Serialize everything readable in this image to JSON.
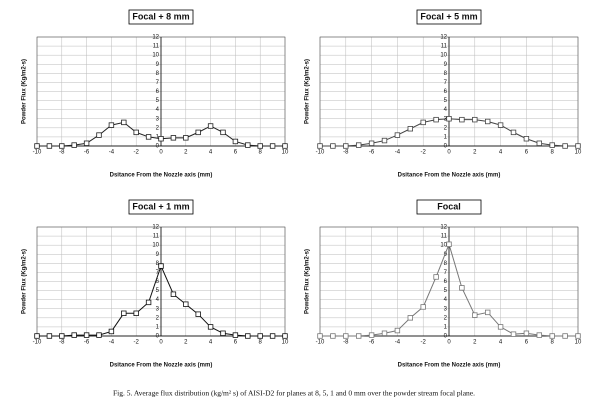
{
  "chart_data": [
    {
      "type": "line",
      "title": "Focal + 8 mm",
      "x_label": "Dsitance From the Nozzle axis (mm)",
      "y_label": "Powder Flux (Kg/m2-s)",
      "x": [
        -10,
        -9,
        -8,
        -7,
        -6,
        -5,
        -4,
        -3,
        -2,
        -1,
        0,
        1,
        2,
        3,
        4,
        5,
        6,
        7,
        8,
        9,
        10
      ],
      "series": [
        {
          "name": "Focal + 8 mm",
          "color": "#222222",
          "values": [
            0,
            0,
            0,
            0.1,
            0.3,
            1.2,
            2.3,
            2.6,
            1.5,
            1.0,
            0.8,
            0.9,
            0.9,
            1.5,
            2.2,
            1.5,
            0.5,
            0.1,
            0,
            0,
            0
          ]
        }
      ],
      "xlim": [
        -10,
        10
      ],
      "xticks": [
        -10,
        -8,
        -6,
        -4,
        -2,
        0,
        2,
        4,
        6,
        8,
        10
      ],
      "ylim": [
        0,
        12
      ],
      "yticks": [
        0,
        1,
        2,
        3,
        4,
        5,
        6,
        7,
        8,
        9,
        10,
        11,
        12
      ],
      "grid": true
    },
    {
      "type": "line",
      "title": "Focal + 5 mm",
      "x_label": "Dsitance From the Nozzle axis (mm)",
      "y_label": "Powder Flux (Kg/m2-s)",
      "x": [
        -10,
        -9,
        -8,
        -7,
        -6,
        -5,
        -4,
        -3,
        -2,
        -1,
        0,
        1,
        2,
        3,
        4,
        5,
        6,
        7,
        8,
        9,
        10
      ],
      "series": [
        {
          "name": "Focal + 5 mm",
          "color": "#444444",
          "values": [
            0,
            0,
            0,
            0.1,
            0.3,
            0.6,
            1.2,
            1.9,
            2.6,
            2.9,
            3.0,
            2.9,
            2.9,
            2.7,
            2.3,
            1.5,
            0.8,
            0.3,
            0.1,
            0,
            0
          ]
        }
      ],
      "xlim": [
        -10,
        10
      ],
      "xticks": [
        -10,
        -8,
        -6,
        -4,
        -2,
        0,
        2,
        4,
        6,
        8,
        10
      ],
      "ylim": [
        0,
        12
      ],
      "yticks": [
        0,
        1,
        2,
        3,
        4,
        5,
        6,
        7,
        8,
        9,
        10,
        11,
        12
      ],
      "grid": true
    },
    {
      "type": "line",
      "title": "Focal + 1 mm",
      "x_label": "Dsitance From the Nozzle axis (mm)",
      "y_label": "Powder Flux (Kg/m2-s)",
      "x": [
        -10,
        -9,
        -8,
        -7,
        -6,
        -5,
        -4,
        -3,
        -2,
        -1,
        0,
        1,
        2,
        3,
        4,
        5,
        6,
        7,
        8,
        9,
        10
      ],
      "series": [
        {
          "name": "Focal + 1 mm",
          "color": "#111111",
          "values": [
            0,
            0,
            0,
            0.1,
            0.1,
            0.1,
            0.5,
            2.5,
            2.5,
            3.7,
            7.7,
            4.6,
            3.5,
            2.4,
            1.0,
            0.3,
            0.1,
            0,
            0,
            0,
            0
          ]
        }
      ],
      "xlim": [
        -10,
        10
      ],
      "xticks": [
        -10,
        -8,
        -6,
        -4,
        -2,
        0,
        2,
        4,
        6,
        8,
        10
      ],
      "ylim": [
        0,
        12
      ],
      "yticks": [
        0,
        1,
        2,
        3,
        4,
        5,
        6,
        7,
        8,
        9,
        10,
        11,
        12
      ],
      "grid": true
    },
    {
      "type": "line",
      "title": "Focal",
      "x_label": "Dsitance From the Nozzle axis (mm)",
      "y_label": "Powder Flux (Kg/m2-s)",
      "x": [
        -10,
        -9,
        -8,
        -7,
        -6,
        -5,
        -4,
        -3,
        -2,
        -1,
        0,
        1,
        2,
        3,
        4,
        5,
        6,
        7,
        8,
        9,
        10
      ],
      "series": [
        {
          "name": "Focal",
          "color": "#777777",
          "values": [
            0,
            0,
            0,
            0,
            0.1,
            0.3,
            0.6,
            2.0,
            3.2,
            6.5,
            10.1,
            5.3,
            2.3,
            2.6,
            1.0,
            0.2,
            0.3,
            0.1,
            0,
            0,
            0
          ]
        }
      ],
      "xlim": [
        -10,
        10
      ],
      "xticks": [
        -10,
        -8,
        -6,
        -4,
        -2,
        0,
        2,
        4,
        6,
        8,
        10
      ],
      "ylim": [
        0,
        12
      ],
      "yticks": [
        0,
        1,
        2,
        3,
        4,
        5,
        6,
        7,
        8,
        9,
        10,
        11,
        12
      ],
      "grid": true
    }
  ],
  "caption": "Fig. 5.  Average flux distribution (kg/m² s) of AISI-D2 for planes at 8, 5, 1 and 0 mm over the powder stream focal plane."
}
